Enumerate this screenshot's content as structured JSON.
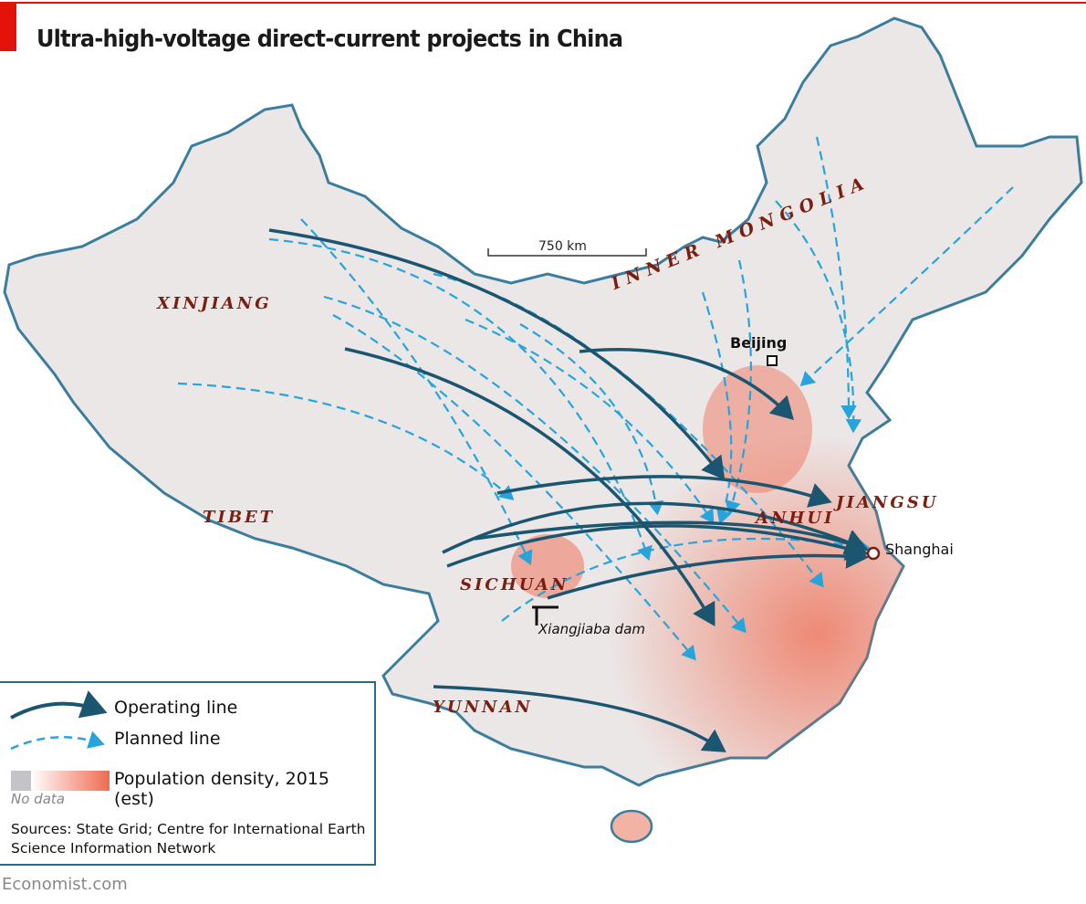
{
  "header": {
    "title": "Ultra-high-voltage direct-current projects in China"
  },
  "map": {
    "scale_label": "750 km",
    "regions": [
      "XINJIANG",
      "TIBET",
      "INNER MONGOLIA",
      "SICHUAN",
      "YUNNAN",
      "ANHUI",
      "JIANGSU"
    ],
    "cities": {
      "beijing": "Beijing",
      "shanghai": "Shanghai"
    },
    "dam": "Xiangjiaba dam"
  },
  "legend": {
    "operating": "Operating line",
    "planned": "Planned line",
    "population": "Population density, 2015 (est)",
    "no_data": "No data"
  },
  "colors": {
    "operating": "#1b5670",
    "planned": "#27a4dc",
    "accent": "#e3120b",
    "land": "#ece7e7",
    "border": "#3b7d9c",
    "density": "#ef6a4f"
  },
  "footer": {
    "sources": "Sources: State Grid; Centre for International Earth Science Information Network",
    "credit": "Economist.com"
  }
}
